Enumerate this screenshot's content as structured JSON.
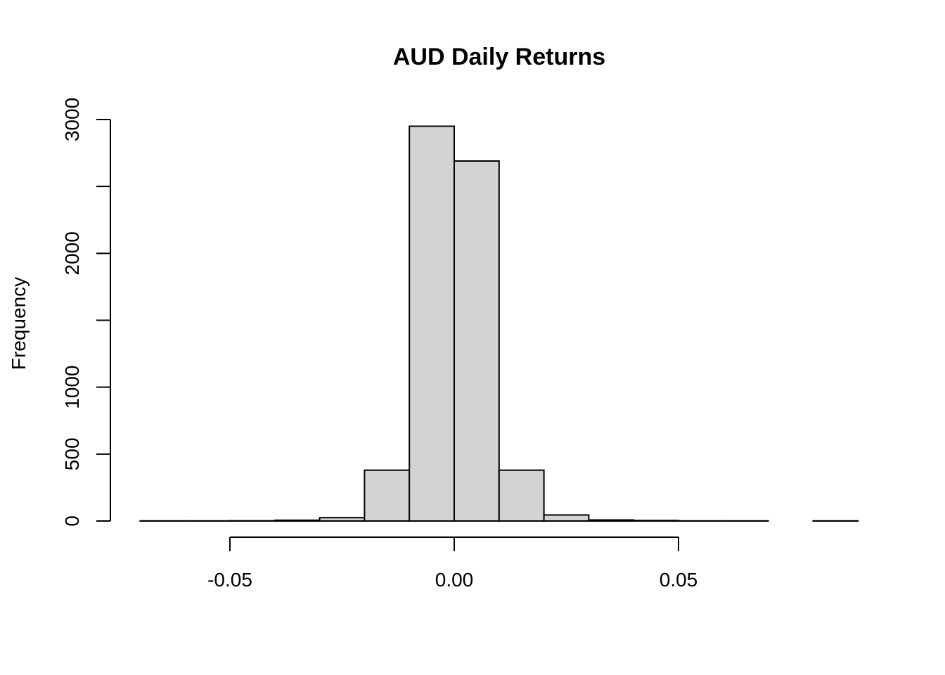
{
  "chart_data": {
    "type": "bar",
    "title": "AUD Daily Returns",
    "xlabel": "",
    "ylabel": "Frequency",
    "bin_edges": [
      -0.07,
      -0.06,
      -0.05,
      -0.04,
      -0.03,
      -0.02,
      -0.01,
      0.0,
      0.01,
      0.02,
      0.03,
      0.04,
      0.05,
      0.06,
      0.07,
      0.08,
      0.09
    ],
    "values": [
      1,
      1,
      2,
      6,
      25,
      380,
      2950,
      2690,
      380,
      45,
      8,
      4,
      1,
      1,
      0,
      1
    ],
    "x_ticks": [
      -0.05,
      0.0,
      0.05
    ],
    "x_tick_labels": [
      "-0.05",
      "0.00",
      "0.05"
    ],
    "y_ticks": [
      0,
      500,
      1000,
      1500,
      2000,
      2500,
      3000
    ],
    "y_tick_labels": [
      "0",
      "500",
      "1000",
      "",
      "2000",
      "",
      "3000"
    ],
    "xlim": [
      -0.07,
      0.09
    ],
    "ylim": [
      0,
      3000
    ],
    "grid": false,
    "legend": "none"
  }
}
